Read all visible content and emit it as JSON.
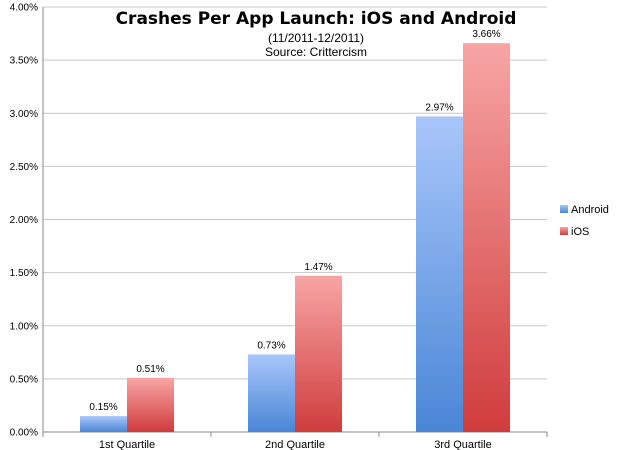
{
  "chart_data": {
    "type": "bar",
    "title": "Crashes Per App Launch: iOS and Android",
    "subtitle_lines": [
      "(11/2011-12/2011)",
      "Source: Crittercism"
    ],
    "categories": [
      "1st Quartile",
      "2nd Quartile",
      "3rd Quartile"
    ],
    "series": [
      {
        "name": "Android",
        "values": [
          0.15,
          0.73,
          2.97
        ],
        "labels": [
          "0.15%",
          "0.73%",
          "2.97%"
        ],
        "color_top": "#a8c6fa",
        "color_bottom": "#4a86d6"
      },
      {
        "name": "iOS",
        "values": [
          0.51,
          1.47,
          3.66
        ],
        "labels": [
          "0.51%",
          "1.47%",
          "3.66%"
        ],
        "color_top": "#f8a5a5",
        "color_bottom": "#d03c3c"
      }
    ],
    "ylim": [
      0,
      4.0
    ],
    "yticks": [
      0,
      0.5,
      1.0,
      1.5,
      2.0,
      2.5,
      3.0,
      3.5,
      4.0
    ],
    "ytick_labels": [
      "0.00%",
      "0.50%",
      "1.00%",
      "1.50%",
      "2.00%",
      "2.50%",
      "3.00%",
      "3.50%",
      "4.00%"
    ],
    "xlabel": "",
    "ylabel": "",
    "grid": true,
    "legend_position": "right"
  }
}
